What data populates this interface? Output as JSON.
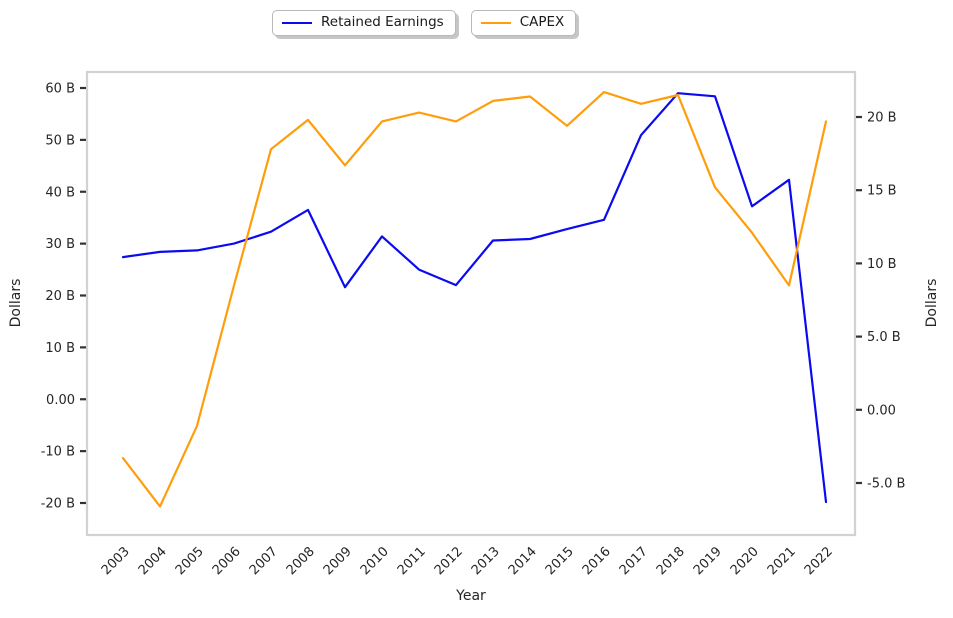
{
  "chart": {
    "legend_items": [
      {
        "label": "Retained Earnings",
        "color": "#0b0bf0"
      },
      {
        "label": "CAPEX",
        "color": "#ff9d0a"
      }
    ]
  },
  "chart_data": {
    "type": "line",
    "title": "",
    "xlabel": "Year",
    "ylabel_left": "Dollars",
    "ylabel_right": "Dollars",
    "grid": false,
    "legend_position": "top-center",
    "categories": [
      "2003",
      "2004",
      "2005",
      "2006",
      "2007",
      "2008",
      "2009",
      "2010",
      "2011",
      "2012",
      "2013",
      "2014",
      "2015",
      "2016",
      "2017",
      "2018",
      "2019",
      "2020",
      "2021",
      "2022"
    ],
    "series": [
      {
        "name": "Retained Earnings",
        "yaxis": "left",
        "color": "#0b0bf0",
        "unit": "billion dollars",
        "values": [
          27.4,
          28.4,
          28.7,
          30.0,
          32.3,
          36.5,
          21.6,
          31.4,
          25.0,
          22.0,
          30.6,
          30.9,
          32.8,
          34.6,
          50.9,
          59.0,
          58.4,
          37.2,
          42.3,
          -19.8
        ]
      },
      {
        "name": "CAPEX",
        "yaxis": "right",
        "color": "#ff9d0a",
        "unit": "billion dollars",
        "values": [
          -3.3,
          -6.6,
          -1.1,
          8.5,
          17.8,
          19.8,
          16.7,
          19.7,
          20.3,
          19.7,
          21.1,
          21.4,
          19.4,
          21.7,
          20.9,
          21.5,
          15.2,
          12.1,
          8.5,
          19.7
        ]
      }
    ],
    "left_axis": {
      "label": "Dollars",
      "range": [
        -26.2,
        63.1
      ],
      "ticks": [
        {
          "label": "60 B",
          "value": 60
        },
        {
          "label": "50 B",
          "value": 50
        },
        {
          "label": "40 B",
          "value": 40
        },
        {
          "label": "30 B",
          "value": 30
        },
        {
          "label": "20 B",
          "value": 20
        },
        {
          "label": "10 B",
          "value": 10
        },
        {
          "label": "0.00",
          "value": 0
        },
        {
          "label": "-10 B",
          "value": -10
        },
        {
          "label": "-20 B",
          "value": -20
        }
      ]
    },
    "right_axis": {
      "label": "Dollars",
      "range": [
        -8.6,
        23.1
      ],
      "ticks": [
        {
          "label": "20 B",
          "value": 20
        },
        {
          "label": "15 B",
          "value": 15
        },
        {
          "label": "10 B",
          "value": 10
        },
        {
          "label": "5.0 B",
          "value": 5
        },
        {
          "label": "0.00",
          "value": 0
        },
        {
          "label": "-5.0 B",
          "value": -5
        }
      ]
    }
  }
}
